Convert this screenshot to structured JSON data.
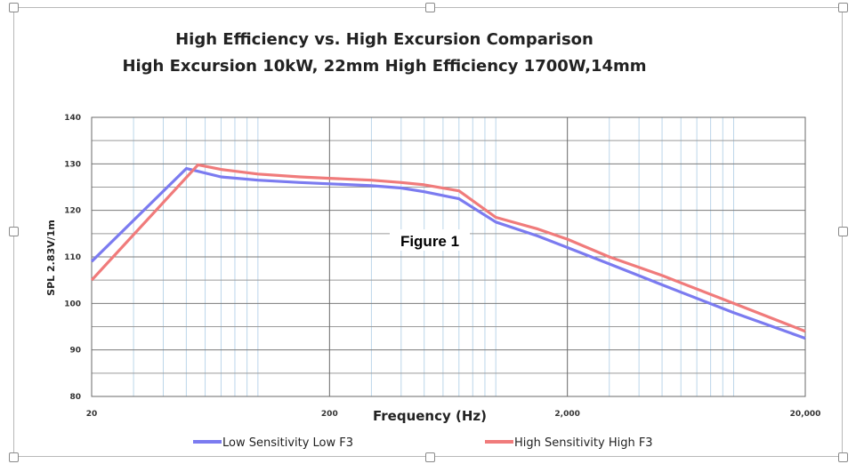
{
  "chart_data": {
    "type": "line",
    "title": "High Efficiency vs. High Excursion Comparison",
    "subtitle": "High Excursion 10kW, 22mm High Efficiency 1700W,14mm",
    "xlabel": "Frequency (Hz)",
    "ylabel": "SPL 2.83V/1m",
    "x_scale": "log",
    "xlim": [
      20,
      20000
    ],
    "ylim": [
      80,
      140
    ],
    "x_ticks": [
      20,
      200,
      2000,
      20000
    ],
    "x_tick_labels": [
      "20",
      "200",
      "2,000",
      "20,000"
    ],
    "y_ticks": [
      80,
      90,
      100,
      110,
      120,
      130,
      140
    ],
    "y_tick_labels": [
      "80",
      "90",
      "100",
      "110",
      "120",
      "130",
      "140"
    ],
    "grid": true,
    "legend": "bottom",
    "annotation": "Figure 1",
    "series": [
      {
        "name": "Low Sensitivity Low F3",
        "color": "#7b7bf0",
        "points": [
          [
            20,
            109
          ],
          [
            50,
            129
          ],
          [
            55,
            128.5
          ],
          [
            70,
            127.2
          ],
          [
            100,
            126.5
          ],
          [
            150,
            126
          ],
          [
            200,
            125.7
          ],
          [
            300,
            125.3
          ],
          [
            400,
            124.8
          ],
          [
            500,
            124
          ],
          [
            700,
            122.5
          ],
          [
            1000,
            117.5
          ],
          [
            1500,
            114.5
          ],
          [
            2000,
            112
          ],
          [
            3000,
            108.5
          ],
          [
            5000,
            104
          ],
          [
            10000,
            98
          ],
          [
            20000,
            92.5
          ]
        ]
      },
      {
        "name": "High Sensitivity  High F3",
        "color": "#f07b7b",
        "points": [
          [
            20,
            105
          ],
          [
            56,
            129.8
          ],
          [
            70,
            128.8
          ],
          [
            100,
            127.8
          ],
          [
            150,
            127.2
          ],
          [
            200,
            126.9
          ],
          [
            300,
            126.5
          ],
          [
            400,
            126
          ],
          [
            500,
            125.5
          ],
          [
            700,
            124.2
          ],
          [
            1000,
            118.5
          ],
          [
            1500,
            116
          ],
          [
            2000,
            113.8
          ],
          [
            3000,
            110
          ],
          [
            5000,
            106
          ],
          [
            10000,
            100
          ],
          [
            20000,
            94
          ]
        ]
      }
    ]
  }
}
